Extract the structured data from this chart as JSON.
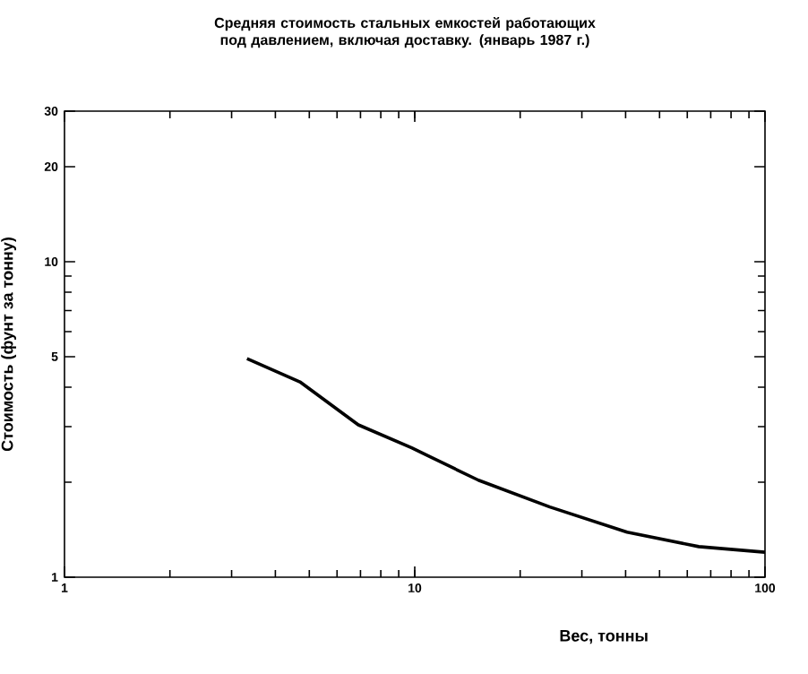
{
  "chart_data": {
    "type": "line",
    "title": "Средняя стоимость стальных емкостей  работающих под давлением, включая доставку.  (январь 1987 г.)",
    "xlabel": "Вес, тонны",
    "ylabel": "Стоимость (фунт за тонну)",
    "log": "xy",
    "grid": false,
    "marker": "none",
    "line_style": "solid",
    "xlim": [
      1,
      100
    ],
    "xticks": [
      1,
      10,
      100
    ],
    "ylim": [
      1,
      30
    ],
    "yticks": [
      1,
      5,
      10,
      20,
      30
    ],
    "series": [
      {
        "color": "#000000",
        "x": [
          3.32,
          4.7,
          6.9,
          9.8,
          15.2,
          24.3,
          40.4,
          64.7,
          100
        ],
        "values": [
          4.93,
          4.16,
          3.04,
          2.57,
          2.03,
          1.67,
          1.39,
          1.25,
          1.2
        ]
      }
    ]
  }
}
